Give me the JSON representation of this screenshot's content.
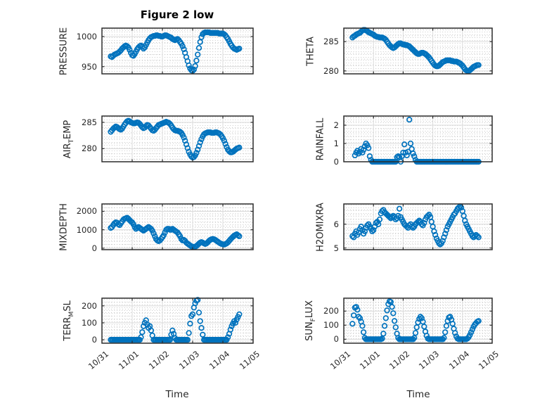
{
  "title": "Figure 2 low",
  "xlabel": "Time",
  "colors": {
    "marker": "#0072BD",
    "axis_box": "#2b2b2b",
    "text": "#262626",
    "grid_major": "#d9d9d9",
    "grid_minor": "#c9c9c9",
    "background": "#ffffff",
    "plot_background": "#f7f7f7"
  },
  "chart_data": {
    "type": "scatter",
    "marker": "open-circle",
    "grid": "major solid + minor dotted",
    "x_axis": {
      "label": "Time",
      "tick_labels": [
        "10/31",
        "11/01",
        "11/02",
        "11/03",
        "11/04",
        "11/05"
      ],
      "range_days": [
        0,
        5
      ],
      "time_start_hour": 7,
      "time_step_hours": 1
    },
    "subplots": [
      {
        "name": "PRESSURE",
        "row": 0,
        "col": 0,
        "label": {
          "pre": "PRESSURE",
          "sub": "",
          "post": ""
        },
        "ylim": [
          938,
          1014
        ],
        "yticks": [
          950,
          1000
        ],
        "ytick_labels": [
          "950",
          "1000"
        ],
        "minor_step": 10,
        "values": [
          967,
          966,
          968,
          970,
          971,
          972,
          973,
          975,
          977,
          980,
          982,
          984,
          985,
          984,
          982,
          978,
          973,
          969,
          968,
          971,
          975,
          979,
          982,
          984,
          985,
          983,
          980,
          982,
          986,
          990,
          994,
          997,
          999,
          1000,
          1001,
          1001,
          1002,
          1002,
          1001,
          1001,
          1000,
          1000,
          1001,
          1002,
          1002,
          1001,
          1000,
          999,
          998,
          996,
          995,
          994,
          995,
          996,
          994,
          991,
          988,
          984,
          979,
          973,
          966,
          959,
          952,
          947,
          944,
          943,
          945,
          951,
          960,
          970,
          981,
          991,
          999,
          1004,
          1006,
          1007,
          1007,
          1007,
          1007,
          1006,
          1006,
          1006,
          1006,
          1006,
          1006,
          1006,
          1005,
          1005,
          1005,
          1005,
          1004,
          1002,
          999,
          996,
          992,
          988,
          985,
          982,
          980,
          979,
          978,
          979,
          980
        ]
      },
      {
        "name": "THETA",
        "row": 0,
        "col": 1,
        "label": {
          "pre": "THETA",
          "sub": "",
          "post": ""
        },
        "ylim": [
          279.5,
          287.3
        ],
        "yticks": [
          280,
          285
        ],
        "ytick_labels": [
          "280",
          "285"
        ],
        "minor_step": 1,
        "values": [
          285.7,
          285.9,
          286.0,
          286.2,
          286.3,
          286.4,
          286.5,
          286.7,
          286.9,
          287.0,
          287.0,
          286.9,
          286.8,
          286.6,
          286.5,
          286.4,
          286.3,
          286.2,
          286.0,
          285.9,
          285.8,
          285.8,
          285.7,
          285.7,
          285.7,
          285.6,
          285.5,
          285.3,
          285.0,
          284.7,
          284.4,
          284.2,
          284.0,
          283.9,
          284.0,
          284.2,
          284.4,
          284.6,
          284.7,
          284.7,
          284.6,
          284.5,
          284.5,
          284.4,
          284.4,
          284.3,
          284.2,
          284.0,
          283.8,
          283.6,
          283.4,
          283.2,
          283.0,
          282.9,
          282.9,
          283.0,
          283.1,
          283.1,
          283.0,
          282.9,
          282.7,
          282.5,
          282.3,
          282.0,
          281.7,
          281.4,
          281.1,
          280.9,
          280.8,
          280.8,
          280.9,
          281.1,
          281.3,
          281.5,
          281.6,
          281.7,
          281.8,
          281.8,
          281.8,
          281.8,
          281.7,
          281.7,
          281.6,
          281.6,
          281.6,
          281.5,
          281.4,
          281.3,
          281.1,
          280.9,
          280.6,
          280.3,
          280.1,
          280.0,
          280.0,
          280.1,
          280.3,
          280.5,
          280.7,
          280.8,
          280.9,
          281.0,
          281.0
        ]
      },
      {
        "name": "AIR_TEMP",
        "row": 1,
        "col": 0,
        "label": {
          "pre": "AIR",
          "sub": "T",
          "post": "EMP"
        },
        "ylim": [
          277.5,
          286.2
        ],
        "yticks": [
          280,
          285
        ],
        "ytick_labels": [
          "280",
          "285"
        ],
        "minor_step": 1,
        "values": [
          283.2,
          283.5,
          283.8,
          284.0,
          284.2,
          284.1,
          283.9,
          283.7,
          283.6,
          283.8,
          284.2,
          284.6,
          284.9,
          285.2,
          285.3,
          285.2,
          285.0,
          284.9,
          284.8,
          284.8,
          284.9,
          285.0,
          284.9,
          284.7,
          284.4,
          284.1,
          283.9,
          284.0,
          284.3,
          284.5,
          284.4,
          284.1,
          283.8,
          283.5,
          283.4,
          283.6,
          283.9,
          284.2,
          284.5,
          284.6,
          284.7,
          284.8,
          284.9,
          285.0,
          285.1,
          285.0,
          284.9,
          284.7,
          284.4,
          284.0,
          283.7,
          283.5,
          283.4,
          283.4,
          283.3,
          283.2,
          283.0,
          282.6,
          282.1,
          281.5,
          280.8,
          280.1,
          279.4,
          278.9,
          278.5,
          278.3,
          278.4,
          278.7,
          279.2,
          279.8,
          280.5,
          281.2,
          281.8,
          282.3,
          282.7,
          282.9,
          283.0,
          283.1,
          283.1,
          283.1,
          283.0,
          283.0,
          283.0,
          283.1,
          283.1,
          283.0,
          282.9,
          282.7,
          282.4,
          282.0,
          281.5,
          280.9,
          280.3,
          279.8,
          279.5,
          279.3,
          279.3,
          279.4,
          279.6,
          279.8,
          280.0,
          280.1,
          280.2
        ]
      },
      {
        "name": "RAINFALL",
        "row": 1,
        "col": 1,
        "label": {
          "pre": "RAINFALL",
          "sub": "",
          "post": ""
        },
        "ylim": [
          0,
          2.5
        ],
        "yticks": [
          0,
          1,
          2
        ],
        "ytick_labels": [
          "0",
          "1",
          "2"
        ],
        "minor_step": 0.2,
        "values": [
          null,
          null,
          0.35,
          0.5,
          0.6,
          0.45,
          0.55,
          0.7,
          0.5,
          0.65,
          0.85,
          1.0,
          0.9,
          0.75,
          0.3,
          0.1,
          0,
          0,
          0,
          0,
          0,
          0,
          0,
          0,
          0,
          0,
          0,
          0,
          0,
          0,
          0,
          0,
          0,
          0,
          0,
          0,
          0.25,
          0.3,
          0.25,
          0,
          0.3,
          0.5,
          0.95,
          0.5,
          0.35,
          0.55,
          2.3,
          1.0,
          0.7,
          0.45,
          0.3,
          0.1,
          0,
          0,
          0,
          0,
          0,
          0,
          0,
          0,
          0,
          0,
          0,
          0,
          0,
          0,
          0,
          0,
          0,
          0,
          0,
          0,
          0,
          0,
          0,
          0,
          0,
          0,
          0,
          0,
          0,
          0,
          0,
          0,
          0,
          0,
          0,
          0,
          0,
          0,
          0,
          0,
          0,
          0,
          0,
          0,
          0,
          0,
          0,
          0,
          0,
          0,
          0
        ]
      },
      {
        "name": "MIXDEPTH",
        "row": 2,
        "col": 0,
        "label": {
          "pre": "MIXDEPTH",
          "sub": "",
          "post": ""
        },
        "ylim": [
          -80,
          2400
        ],
        "yticks": [
          0,
          1000,
          2000
        ],
        "ytick_labels": [
          "0",
          "1000",
          "2000"
        ],
        "minor_step": 200,
        "values": [
          1100,
          1150,
          1250,
          1350,
          1400,
          1380,
          1300,
          1250,
          1350,
          1450,
          1550,
          1600,
          1620,
          1650,
          1600,
          1520,
          1450,
          1400,
          1300,
          1150,
          1050,
          1100,
          1150,
          1100,
          1050,
          1000,
          950,
          1000,
          1050,
          1100,
          1150,
          1100,
          1050,
          950,
          800,
          650,
          500,
          420,
          380,
          420,
          500,
          600,
          700,
          850,
          1000,
          1050,
          1050,
          1000,
          1000,
          1050,
          1000,
          950,
          900,
          850,
          750,
          650,
          500,
          420,
          450,
          400,
          300,
          250,
          200,
          150,
          100,
          80,
          60,
          80,
          120,
          180,
          250,
          300,
          330,
          300,
          260,
          230,
          260,
          320,
          400,
          450,
          480,
          500,
          480,
          450,
          400,
          350,
          300,
          260,
          230,
          210,
          200,
          220,
          260,
          320,
          400,
          480,
          550,
          620,
          680,
          720,
          750,
          700,
          650
        ]
      },
      {
        "name": "H2OMIXRA",
        "row": 2,
        "col": 1,
        "label": {
          "pre": "H2OMIXRA",
          "sub": "",
          "post": ""
        },
        "ylim": [
          4.93,
          6.85
        ],
        "yticks": [
          5,
          6
        ],
        "ytick_labels": [
          "5",
          "6"
        ],
        "minor_step": 0.2,
        "values": [
          5.5,
          5.45,
          5.6,
          5.7,
          5.55,
          5.65,
          5.8,
          5.9,
          5.75,
          5.6,
          5.7,
          5.85,
          5.95,
          6.0,
          5.9,
          5.8,
          5.7,
          5.75,
          5.9,
          6.05,
          6.1,
          6.0,
          6.2,
          6.45,
          6.55,
          6.6,
          6.5,
          6.45,
          6.4,
          6.35,
          6.3,
          6.25,
          6.3,
          6.35,
          6.3,
          6.2,
          6.25,
          6.35,
          6.65,
          6.3,
          6.2,
          6.1,
          6.0,
          5.95,
          5.9,
          5.85,
          5.95,
          6.0,
          5.9,
          5.85,
          5.9,
          6.0,
          6.05,
          6.1,
          6.15,
          6.1,
          6.0,
          5.95,
          6.05,
          6.2,
          6.3,
          6.35,
          6.4,
          6.3,
          6.1,
          5.9,
          5.7,
          5.55,
          5.4,
          5.3,
          5.2,
          5.15,
          5.2,
          5.3,
          5.45,
          5.6,
          5.75,
          5.9,
          6.0,
          6.1,
          6.2,
          6.3,
          6.4,
          6.45,
          6.55,
          6.65,
          6.7,
          6.75,
          6.7,
          6.55,
          6.35,
          6.15,
          6.0,
          5.9,
          5.8,
          5.7,
          5.6,
          5.5,
          5.45,
          5.5,
          5.55,
          5.5,
          5.45
        ]
      },
      {
        "name": "TERR_MSL",
        "row": 3,
        "col": 0,
        "label": {
          "pre": "TERR",
          "sub": "M",
          "post": "SL"
        },
        "ylim": [
          -20,
          245
        ],
        "yticks": [
          0,
          100,
          200
        ],
        "ytick_labels": [
          "0",
          "100",
          "200"
        ],
        "minor_step": 20,
        "values": [
          0,
          0,
          0,
          0,
          0,
          0,
          0,
          0,
          0,
          0,
          0,
          0,
          0,
          0,
          0,
          0,
          0,
          0,
          0,
          0,
          0,
          0,
          0,
          0,
          15,
          45,
          80,
          100,
          115,
          90,
          70,
          80,
          55,
          25,
          0,
          0,
          0,
          0,
          0,
          0,
          0,
          0,
          0,
          0,
          0,
          0,
          0,
          0,
          30,
          55,
          35,
          10,
          0,
          0,
          0,
          0,
          0,
          0,
          0,
          0,
          0,
          0,
          40,
          95,
          140,
          150,
          190,
          215,
          230,
          235,
          160,
          110,
          70,
          30,
          0,
          0,
          0,
          0,
          0,
          0,
          0,
          0,
          0,
          0,
          0,
          0,
          0,
          0,
          0,
          0,
          0,
          0,
          0,
          15,
          35,
          60,
          80,
          95,
          110,
          100,
          120,
          135,
          150
        ]
      },
      {
        "name": "SUN_FLUX",
        "row": 3,
        "col": 1,
        "label": {
          "pre": "SUN",
          "sub": "F",
          "post": "LUX"
        },
        "ylim": [
          -28,
          292
        ],
        "yticks": [
          0,
          100,
          200
        ],
        "ytick_labels": [
          "0",
          "100",
          "200"
        ],
        "minor_step": 20,
        "values": [
          110,
          170,
          225,
          230,
          210,
          160,
          150,
          125,
          95,
          50,
          10,
          0,
          0,
          0,
          0,
          0,
          0,
          0,
          0,
          0,
          0,
          0,
          0,
          0,
          5,
          40,
          95,
          150,
          205,
          250,
          270,
          265,
          230,
          185,
          130,
          85,
          40,
          10,
          0,
          0,
          0,
          0,
          0,
          0,
          0,
          0,
          0,
          0,
          0,
          0,
          10,
          45,
          85,
          120,
          145,
          160,
          150,
          125,
          90,
          55,
          25,
          5,
          0,
          0,
          0,
          0,
          0,
          0,
          0,
          0,
          0,
          0,
          0,
          0,
          10,
          50,
          95,
          130,
          155,
          160,
          140,
          110,
          75,
          45,
          20,
          5,
          0,
          0,
          0,
          0,
          0,
          0,
          0,
          5,
          15,
          30,
          50,
          70,
          90,
          105,
          115,
          125,
          130
        ]
      }
    ]
  }
}
